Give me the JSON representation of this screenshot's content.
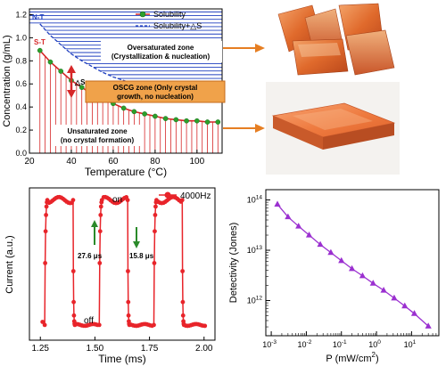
{
  "figure": {
    "photos": [
      {
        "name": "crystal-chunks-photo",
        "desc": "orange crystal chunks"
      },
      {
        "name": "crystal-wafer-photo",
        "desc": "orange square crystal wafer"
      }
    ],
    "arrow_color": "#e67e22"
  },
  "chart_data": [
    {
      "type": "line",
      "title": "",
      "xlabel": "Temperature (°C)",
      "ylabel": "Concentration (g/mL)",
      "xlim": [
        20,
        112
      ],
      "ylim": [
        0,
        1.25
      ],
      "x_ticks": [
        "20",
        "40",
        "60",
        "80",
        "100"
      ],
      "y_ticks": [
        "0.0",
        "0.2",
        "0.4",
        "0.6",
        "0.8",
        "1.0",
        "1.2"
      ],
      "legend": [
        {
          "name": "Solubility",
          "style": "red line with green dots"
        },
        {
          "name": "Solubility+△S",
          "style": "blue dashed line"
        }
      ],
      "series": [
        {
          "name": "Solubility",
          "x": [
            25,
            30,
            35,
            40,
            45,
            50,
            55,
            60,
            65,
            70,
            75,
            80,
            85,
            90,
            95,
            100,
            105,
            110
          ],
          "values": [
            0.89,
            0.79,
            0.71,
            0.63,
            0.57,
            0.51,
            0.47,
            0.43,
            0.39,
            0.36,
            0.34,
            0.32,
            0.3,
            0.29,
            0.28,
            0.28,
            0.27,
            0.27
          ]
        },
        {
          "name": "Solubility+△S",
          "x": [
            25,
            30,
            35,
            40,
            45,
            50,
            55,
            60,
            65,
            70,
            75,
            80,
            85,
            90,
            95,
            100,
            105,
            110
          ],
          "values": [
            1.12,
            1.02,
            0.94,
            0.86,
            0.8,
            0.75,
            0.7,
            0.66,
            0.63,
            0.6,
            0.58,
            0.56,
            0.54,
            0.53,
            0.52,
            0.51,
            0.51,
            0.5
          ]
        }
      ],
      "annotations": {
        "nt_label": "N-T",
        "st_label": "S-T",
        "delta_s": "△S",
        "oversaturated_title": "Oversaturated zone",
        "oversaturated_sub": "(Crystallization & nucleation)",
        "oscg_title": "OSCG zone (Only crystal",
        "oscg_sub": "growth, no nucleation)",
        "unsaturated_title": "Unsaturated zone",
        "unsaturated_sub": "(no crystal formation)"
      },
      "colors": {
        "solubility_line": "#d62728",
        "solubility_marker": "#2ca02c",
        "delta_line": "#1f3fbf",
        "hatch_blue": "#1f3fbf",
        "hatch_red": "#d62728",
        "oscg_box": "#f0a24a",
        "oscg_border": "#c46a1a"
      }
    },
    {
      "type": "line",
      "title": "",
      "xlabel": "Time (ms)",
      "ylabel": "Current (a.u.)",
      "xlim": [
        1.2,
        2.05
      ],
      "ylim": [
        0,
        1
      ],
      "x_ticks": [
        "1.25",
        "1.50",
        "1.75",
        "2.00"
      ],
      "legend": [
        {
          "name": "4000Hz",
          "style": "red line with dots"
        }
      ],
      "series": [
        {
          "name": "4000Hz",
          "on_segments": [
            [
              1.27,
              1.4
            ],
            [
              1.52,
              1.65
            ],
            [
              1.77,
              1.9
            ]
          ]
        }
      ],
      "annotations": {
        "on_label": "on",
        "off_label": "off",
        "rise_label": "27.6 μs",
        "fall_label": "15.8 μs"
      },
      "colors": {
        "line": "#e8242a",
        "arrow": "#2a8a2a"
      }
    },
    {
      "type": "line",
      "title": "",
      "xlabel": "P (mW/cm",
      "xlabel_sup": "2",
      "xlabel_end": ")",
      "ylabel": "Detectivity (Jones)",
      "x_scale": "log",
      "y_scale": "log",
      "x_ticks": [
        {
          "base": "10",
          "exp": "-3"
        },
        {
          "base": "10",
          "exp": "-2"
        },
        {
          "base": "10",
          "exp": "-1"
        },
        {
          "base": "10",
          "exp": "0"
        },
        {
          "base": "10",
          "exp": "1"
        }
      ],
      "y_ticks": [
        {
          "base": "10",
          "exp": "14"
        },
        {
          "base": "10",
          "exp": "13"
        },
        {
          "base": "10",
          "exp": "12"
        }
      ],
      "series": [
        {
          "name": "",
          "x": [
            0.0015,
            0.003,
            0.006,
            0.012,
            0.025,
            0.05,
            0.1,
            0.2,
            0.4,
            0.8,
            1.6,
            3.2,
            6.4,
            12,
            30
          ],
          "values": [
            82000000000000.0,
            46000000000000.0,
            30000000000000.0,
            20000000000000.0,
            13000000000000.0,
            9000000000000.0,
            6200000000000.0,
            4300000000000.0,
            3100000000000.0,
            2200000000000.0,
            1600000000000.0,
            1120000000000.0,
            780000000000.0,
            550000000000.0,
            310000000000.0
          ]
        }
      ],
      "colors": {
        "line": "#9b30d0",
        "marker": "#9b30d0"
      }
    }
  ]
}
